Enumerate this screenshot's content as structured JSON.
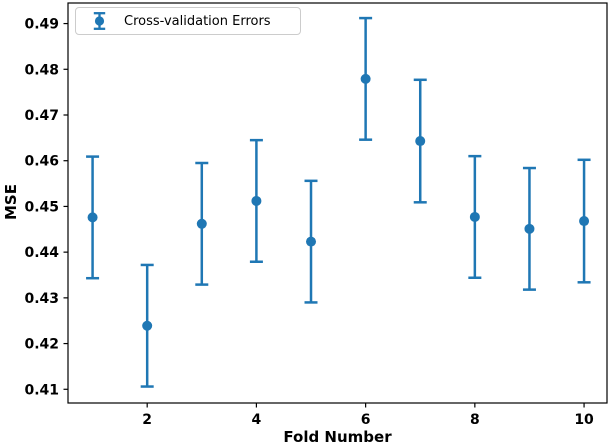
{
  "chart_data": {
    "type": "scatter",
    "subtype": "errorbar",
    "title": "",
    "xlabel": "Fold Number",
    "ylabel": "MSE",
    "legend": {
      "label": "Cross-validation Errors",
      "position": "upper left"
    },
    "color": "#1f77b4",
    "axis_color": "#000000",
    "text_color": "#000000",
    "x": [
      1,
      2,
      3,
      4,
      5,
      6,
      7,
      8,
      9,
      10
    ],
    "series": [
      {
        "name": "Cross-validation Errors",
        "values": [
          0.4476,
          0.4239,
          0.4462,
          0.4512,
          0.4423,
          0.4779,
          0.4643,
          0.4477,
          0.4451,
          0.4468
        ],
        "errors": [
          0.0133,
          0.0133,
          0.0133,
          0.0133,
          0.0133,
          0.0133,
          0.0134,
          0.0133,
          0.0133,
          0.0134
        ]
      }
    ],
    "xlim": [
      0.55,
      10.42
    ],
    "ylim": [
      0.407,
      0.4945
    ],
    "xticks": [
      2,
      4,
      6,
      8,
      10
    ],
    "yticks": [
      0.41,
      0.42,
      0.43,
      0.44,
      0.45,
      0.46,
      0.47,
      0.48,
      0.49
    ],
    "ytick_format": "2dp",
    "grid": false,
    "marker": "circle"
  }
}
